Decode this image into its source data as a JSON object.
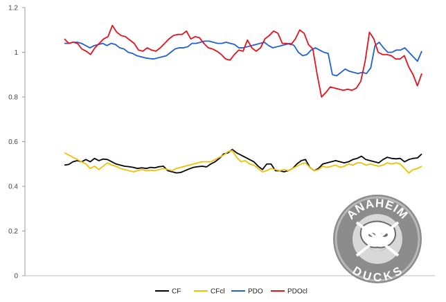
{
  "chart_data": {
    "type": "line",
    "title": "",
    "xlabel": "",
    "ylabel": "",
    "ylim": [
      0,
      1.2
    ],
    "yticks": [
      "0",
      "0.2",
      "0.4",
      "0.6",
      "0.8",
      "1",
      "1.2"
    ],
    "grid": false,
    "legend_position": "bottom",
    "series": [
      {
        "name": "CF",
        "color": "#000000",
        "values": [
          0.495,
          0.498,
          0.51,
          0.515,
          0.51,
          0.52,
          0.51,
          0.525,
          0.515,
          0.522,
          0.52,
          0.51,
          0.5,
          0.495,
          0.49,
          0.488,
          0.485,
          0.48,
          0.483,
          0.48,
          0.485,
          0.483,
          0.488,
          0.49,
          0.47,
          0.465,
          0.46,
          0.462,
          0.47,
          0.478,
          0.485,
          0.488,
          0.49,
          0.487,
          0.5,
          0.51,
          0.525,
          0.545,
          0.55,
          0.565,
          0.55,
          0.54,
          0.53,
          0.52,
          0.51,
          0.49,
          0.475,
          0.5,
          0.5,
          0.47,
          0.47,
          0.465,
          0.47,
          0.48,
          0.5,
          0.515,
          0.52,
          0.485,
          0.47,
          0.48,
          0.5,
          0.505,
          0.51,
          0.515,
          0.51,
          0.505,
          0.51,
          0.52,
          0.525,
          0.535,
          0.52,
          0.515,
          0.51,
          0.505,
          0.52,
          0.53,
          0.525,
          0.523,
          0.525,
          0.51,
          0.52,
          0.525,
          0.527,
          0.545
        ]
      },
      {
        "name": "CFcl",
        "color": "#f0c000",
        "values": [
          0.55,
          0.54,
          0.53,
          0.52,
          0.51,
          0.5,
          0.48,
          0.49,
          0.475,
          0.49,
          0.505,
          0.495,
          0.49,
          0.48,
          0.475,
          0.47,
          0.465,
          0.47,
          0.475,
          0.47,
          0.472,
          0.47,
          0.475,
          0.48,
          0.475,
          0.47,
          0.48,
          0.485,
          0.49,
          0.495,
          0.5,
          0.505,
          0.51,
          0.51,
          0.51,
          0.52,
          0.53,
          0.54,
          0.555,
          0.56,
          0.53,
          0.51,
          0.515,
          0.5,
          0.495,
          0.48,
          0.465,
          0.47,
          0.48,
          0.475,
          0.47,
          0.475,
          0.47,
          0.48,
          0.49,
          0.5,
          0.505,
          0.485,
          0.47,
          0.475,
          0.49,
          0.485,
          0.49,
          0.495,
          0.485,
          0.49,
          0.5,
          0.495,
          0.505,
          0.505,
          0.495,
          0.5,
          0.495,
          0.49,
          0.495,
          0.505,
          0.5,
          0.505,
          0.5,
          0.48,
          0.46,
          0.475,
          0.48,
          0.49
        ]
      },
      {
        "name": "PDO",
        "color": "#1f5fd6",
        "values": [
          1.04,
          1.04,
          1.045,
          1.045,
          1.04,
          1.03,
          1.02,
          1.03,
          1.035,
          1.04,
          1.03,
          1.04,
          1.035,
          1.02,
          1.015,
          1.0,
          0.995,
          0.985,
          0.98,
          0.975,
          0.972,
          0.97,
          0.975,
          0.98,
          0.985,
          1.0,
          1.015,
          1.02,
          1.02,
          1.025,
          1.04,
          1.04,
          1.045,
          1.05,
          1.05,
          1.045,
          1.04,
          1.04,
          1.045,
          1.04,
          1.035,
          1.02,
          1.02,
          1.025,
          1.03,
          1.035,
          1.04,
          1.045,
          1.03,
          1.02,
          1.025,
          1.03,
          1.035,
          1.04,
          1.03,
          1.0,
          0.985,
          0.99,
          1.01,
          1.02,
          1.01,
          1.0,
          0.995,
          0.9,
          0.895,
          0.91,
          0.925,
          0.915,
          0.91,
          0.905,
          0.91,
          0.905,
          0.93,
          1.03,
          1.045,
          1.02,
          1.0,
          1.0,
          1.01,
          1.01,
          1.02,
          1.0,
          0.98,
          0.96,
          1.005
        ]
      },
      {
        "name": "PDOcl",
        "color": "#e8101a",
        "values": [
          1.06,
          1.04,
          1.045,
          1.04,
          1.015,
          1.005,
          0.99,
          1.02,
          1.04,
          1.06,
          1.07,
          1.12,
          1.09,
          1.075,
          1.07,
          1.055,
          1.04,
          1.01,
          1.005,
          1.02,
          1.01,
          1.005,
          1.02,
          1.04,
          1.06,
          1.075,
          1.08,
          1.08,
          1.095,
          1.06,
          1.07,
          1.065,
          1.04,
          1.02,
          1.015,
          1.005,
          0.99,
          0.97,
          0.965,
          0.99,
          1.01,
          1.005,
          1.055,
          1.02,
          1.005,
          1.02,
          1.06,
          1.075,
          1.095,
          1.085,
          1.04,
          1.04,
          1.035,
          1.06,
          1.1,
          1.085,
          1.035,
          1.015,
          0.9,
          0.8,
          0.82,
          0.845,
          0.84,
          0.835,
          0.83,
          0.835,
          0.83,
          0.84,
          0.87,
          0.96,
          1.09,
          1.06,
          1.0,
          0.99,
          0.99,
          0.985,
          0.97,
          0.97,
          0.985,
          0.935,
          0.9,
          0.85,
          0.905
        ]
      }
    ]
  },
  "logo": {
    "text_top": "ANAHEIM",
    "text_bottom": "DUCKS",
    "ring_color": "#8c8c8c",
    "inner_color": "#d8d8d8",
    "text_color": "#ffffff"
  }
}
